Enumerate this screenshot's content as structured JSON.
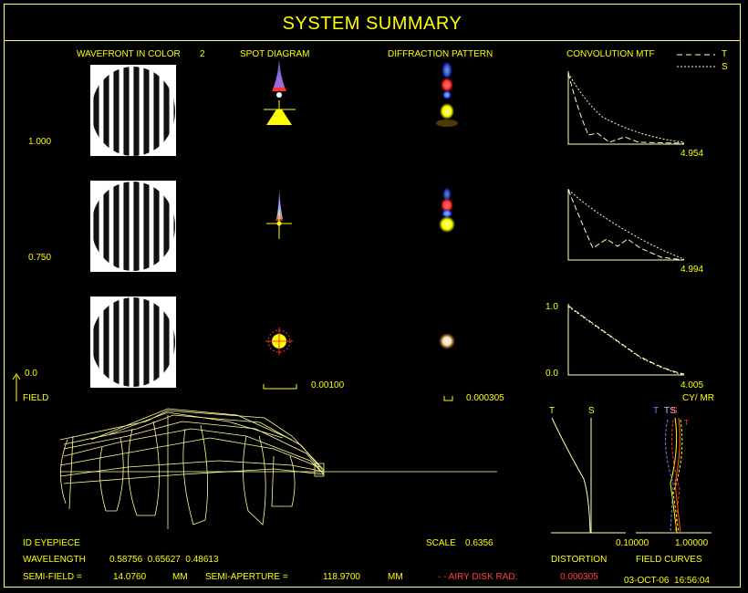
{
  "title": "SYSTEM SUMMARY",
  "headers": {
    "wavefront": "WAVEFRONT IN COLOR",
    "wavefront_color": "2",
    "spot": "SPOT DIAGRAM",
    "diffraction": "DIFFRACTION PATTERN",
    "mtf": "CONVOLUTION MTF"
  },
  "mtf_legend": {
    "t": "T",
    "s": "S"
  },
  "field_labels": [
    "1.000",
    "0.750",
    "0.0"
  ],
  "field_axis_label": "FIELD",
  "mtf_cutoffs": [
    "4.954",
    "4.994",
    "4.005"
  ],
  "mtf_axis": {
    "ymax": "1.0",
    "ymin": "0.0",
    "unit": "CY/ MR"
  },
  "spot_scale": "0.00100",
  "diffraction_scale": "0.000305",
  "curves": {
    "t_label": "T",
    "s_label": "S",
    "fc_labels": [
      "T",
      "TS",
      "S",
      "T"
    ],
    "x_min": "0.10000",
    "x_max": "1.00000",
    "distortion_label": "DISTORTION",
    "field_curves_label": "FIELD CURVES"
  },
  "footer": {
    "name": "ID EYEPIECE",
    "scale_label": "SCALE",
    "scale_value": "0.6356",
    "wavelength_label": "WAVELENGTH",
    "wavelengths": "0.58756  0.65627  0.48613",
    "semi_field_label": "SEMI-FIELD =",
    "semi_field_value": "14.0760",
    "semi_field_unit": "MM",
    "semi_aperture_label": "SEMI-APERTURE =",
    "semi_aperture_value": "118.9700",
    "semi_aperture_unit": "MM",
    "airy_label": "- - AIRY DISK RAD:",
    "airy_value": "0.000305",
    "date": "03-OCT-06  16:56:04"
  },
  "colors": {
    "text": "#ffff00",
    "line": "#ffffc0",
    "airy": "#ff4040",
    "background": "#000000"
  }
}
